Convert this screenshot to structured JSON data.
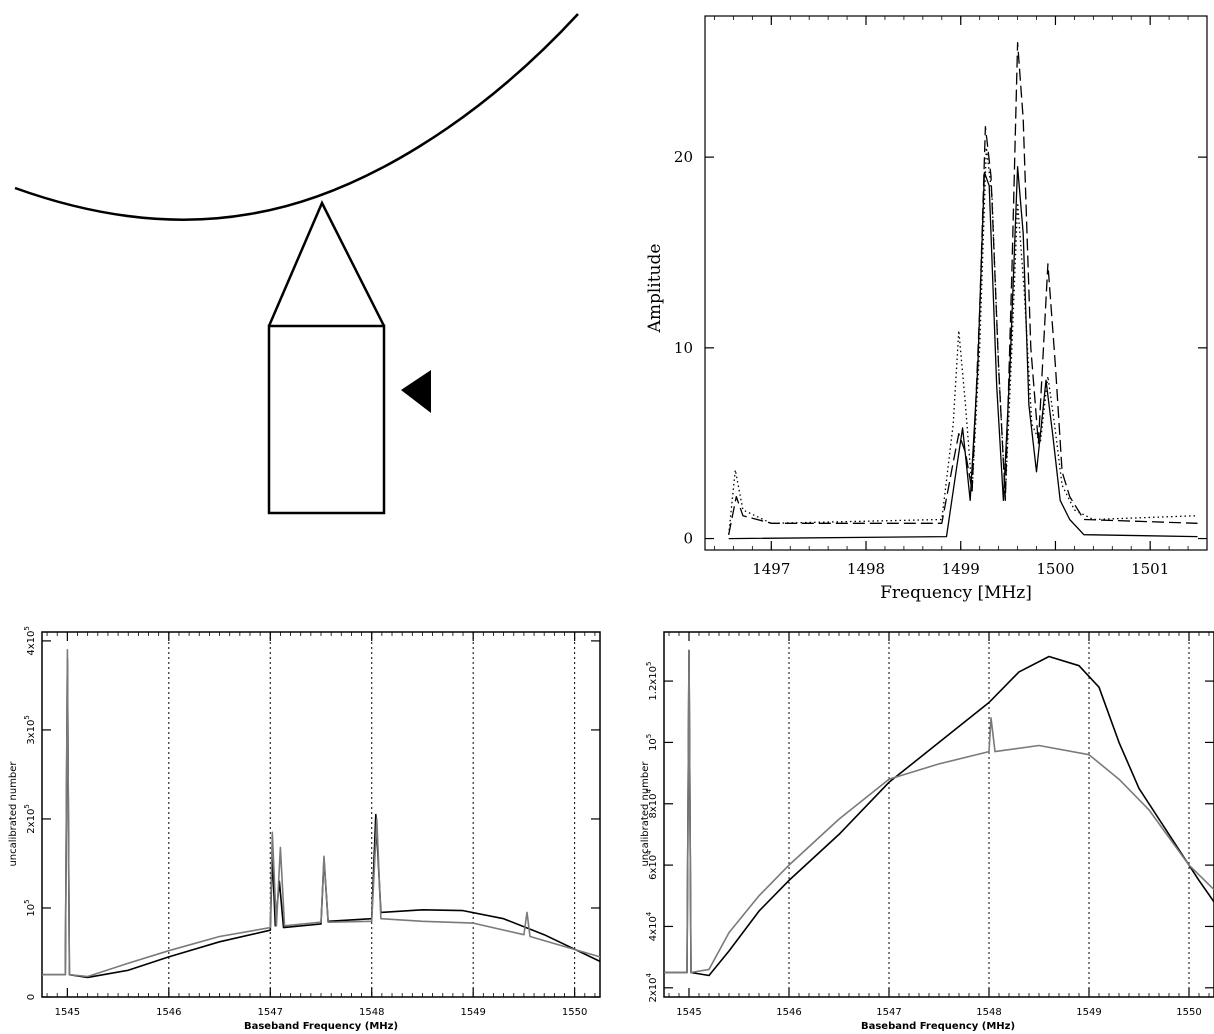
{
  "diagram": {},
  "chart_data": [
    {
      "type": "line",
      "title": "",
      "xlabel": "Frequency [MHz]",
      "ylabel": "Amplitude",
      "xlim": [
        1496.3,
        1501.6
      ],
      "ylim": [
        -0.6,
        27.4
      ],
      "xticks": [
        1497,
        1498,
        1499,
        1500,
        1501
      ],
      "yticks": [
        0,
        10,
        20
      ],
      "grid": false,
      "legend": "none",
      "series": [
        {
          "style": "solid",
          "points": [
            [
              1496.55,
              0.0
            ],
            [
              1498.85,
              0.1
            ],
            [
              1498.95,
              3.5
            ],
            [
              1499.02,
              5.8
            ],
            [
              1499.1,
              2.0
            ],
            [
              1499.18,
              9.0
            ],
            [
              1499.25,
              19.2
            ],
            [
              1499.3,
              18.5
            ],
            [
              1499.38,
              8.0
            ],
            [
              1499.45,
              2.0
            ],
            [
              1499.52,
              9.0
            ],
            [
              1499.6,
              19.5
            ],
            [
              1499.66,
              16.0
            ],
            [
              1499.72,
              7.0
            ],
            [
              1499.8,
              3.5
            ],
            [
              1499.9,
              8.3
            ],
            [
              1499.97,
              5.5
            ],
            [
              1500.05,
              2.0
            ],
            [
              1500.15,
              1.0
            ],
            [
              1500.3,
              0.2
            ],
            [
              1501.5,
              0.1
            ]
          ]
        },
        {
          "style": "dotted",
          "points": [
            [
              1496.55,
              0.2
            ],
            [
              1496.62,
              3.6
            ],
            [
              1496.7,
              1.5
            ],
            [
              1497.0,
              0.8
            ],
            [
              1498.8,
              1.0
            ],
            [
              1498.92,
              6.0
            ],
            [
              1498.98,
              10.9
            ],
            [
              1499.05,
              7.0
            ],
            [
              1499.12,
              2.5
            ],
            [
              1499.2,
              10.0
            ],
            [
              1499.27,
              20.5
            ],
            [
              1499.33,
              18.0
            ],
            [
              1499.4,
              9.0
            ],
            [
              1499.47,
              2.2
            ],
            [
              1499.54,
              10.0
            ],
            [
              1499.6,
              17.6
            ],
            [
              1499.67,
              13.0
            ],
            [
              1499.75,
              6.0
            ],
            [
              1499.84,
              5.0
            ],
            [
              1499.92,
              8.5
            ],
            [
              1499.99,
              6.0
            ],
            [
              1500.07,
              2.8
            ],
            [
              1500.2,
              1.5
            ],
            [
              1500.4,
              1.0
            ],
            [
              1501.5,
              1.2
            ]
          ]
        },
        {
          "style": "dashed",
          "points": [
            [
              1496.55,
              0.2
            ],
            [
              1496.63,
              2.2
            ],
            [
              1496.7,
              1.2
            ],
            [
              1497.0,
              0.8
            ],
            [
              1498.8,
              0.8
            ],
            [
              1498.92,
              4.0
            ],
            [
              1498.98,
              5.5
            ],
            [
              1499.05,
              4.5
            ],
            [
              1499.12,
              2.5
            ],
            [
              1499.2,
              12.0
            ],
            [
              1499.26,
              21.6
            ],
            [
              1499.32,
              19.0
            ],
            [
              1499.4,
              9.0
            ],
            [
              1499.47,
              2.0
            ],
            [
              1499.54,
              14.0
            ],
            [
              1499.6,
              26.0
            ],
            [
              1499.66,
              22.0
            ],
            [
              1499.74,
              10.0
            ],
            [
              1499.82,
              5.0
            ],
            [
              1499.92,
              14.4
            ],
            [
              1500.0,
              9.0
            ],
            [
              1500.07,
              3.5
            ],
            [
              1500.15,
              2.2
            ],
            [
              1500.3,
              1.0
            ],
            [
              1501.5,
              0.8
            ]
          ]
        }
      ]
    },
    {
      "type": "line",
      "title": "",
      "xlabel": "Baseband Frequency (MHz)",
      "ylabel": "uncalibrated number",
      "xlim": [
        1544.75,
        1550.25
      ],
      "ylim": [
        0,
        410000
      ],
      "xticks": [
        1545,
        1546,
        1547,
        1548,
        1549,
        1550
      ],
      "yticks": [
        0,
        100000,
        200000,
        300000,
        400000
      ],
      "ytick_labels": [
        {
          "base": "0",
          "exp": ""
        },
        {
          "base": "10",
          "exp": "5"
        },
        {
          "base": "2x10",
          "exp": "5"
        },
        {
          "base": "3x10",
          "exp": "5"
        },
        {
          "base": "4x10",
          "exp": "5"
        }
      ],
      "vlines": [
        1546,
        1547,
        1548,
        1549,
        1550
      ],
      "series": [
        {
          "color": "#000000",
          "points": [
            [
              1544.75,
              25000
            ],
            [
              1544.98,
              25000
            ],
            [
              1545.0,
              380000
            ],
            [
              1545.02,
              25000
            ],
            [
              1545.2,
              22000
            ],
            [
              1545.6,
              30000
            ],
            [
              1546.0,
              45000
            ],
            [
              1546.5,
              62000
            ],
            [
              1547.0,
              75000
            ],
            [
              1547.02,
              160000
            ],
            [
              1547.05,
              80000
            ],
            [
              1547.09,
              130000
            ],
            [
              1547.13,
              78000
            ],
            [
              1547.5,
              82000
            ],
            [
              1547.53,
              155000
            ],
            [
              1547.57,
              85000
            ],
            [
              1548.0,
              88000
            ],
            [
              1548.04,
              205000
            ],
            [
              1548.09,
              95000
            ],
            [
              1548.5,
              98000
            ],
            [
              1548.9,
              97000
            ],
            [
              1549.3,
              88000
            ],
            [
              1549.7,
              70000
            ],
            [
              1550.25,
              40000
            ]
          ]
        },
        {
          "color": "#7a7a7a",
          "points": [
            [
              1544.75,
              25000
            ],
            [
              1544.98,
              25000
            ],
            [
              1545.0,
              390000
            ],
            [
              1545.02,
              25000
            ],
            [
              1545.2,
              23000
            ],
            [
              1545.6,
              38000
            ],
            [
              1546.0,
              52000
            ],
            [
              1546.5,
              68000
            ],
            [
              1547.0,
              78000
            ],
            [
              1547.02,
              185000
            ],
            [
              1547.06,
              80000
            ],
            [
              1547.1,
              168000
            ],
            [
              1547.14,
              80000
            ],
            [
              1547.5,
              84000
            ],
            [
              1547.53,
              158000
            ],
            [
              1547.57,
              84000
            ],
            [
              1548.0,
              85000
            ],
            [
              1548.05,
              200000
            ],
            [
              1548.09,
              88000
            ],
            [
              1548.5,
              85000
            ],
            [
              1549.0,
              83000
            ],
            [
              1549.5,
              70000
            ],
            [
              1549.53,
              95000
            ],
            [
              1549.56,
              68000
            ],
            [
              1550.25,
              45000
            ]
          ]
        }
      ]
    },
    {
      "type": "line",
      "title": "",
      "xlabel": "Baseband Frequency (MHz)",
      "ylabel": "uncalibrated number",
      "xlim": [
        1544.75,
        1550.25
      ],
      "ylim": [
        17000,
        136000
      ],
      "xticks": [
        1545,
        1546,
        1547,
        1548,
        1549,
        1550
      ],
      "yticks": [
        20000,
        40000,
        60000,
        80000,
        100000,
        120000
      ],
      "ytick_labels": [
        {
          "base": "2x10",
          "exp": "4"
        },
        {
          "base": "4x10",
          "exp": "4"
        },
        {
          "base": "6x10",
          "exp": "4"
        },
        {
          "base": "8x10",
          "exp": "4"
        },
        {
          "base": "10",
          "exp": "5"
        },
        {
          "base": "1.2x10",
          "exp": "5"
        }
      ],
      "vlines": [
        1546,
        1547,
        1548,
        1549,
        1550
      ],
      "series": [
        {
          "color": "#000000",
          "points": [
            [
              1544.75,
              25000
            ],
            [
              1544.98,
              25000
            ],
            [
              1545.0,
              130000
            ],
            [
              1545.02,
              25000
            ],
            [
              1545.2,
              24000
            ],
            [
              1545.4,
              32000
            ],
            [
              1545.7,
              45000
            ],
            [
              1546.0,
              55000
            ],
            [
              1546.5,
              70000
            ],
            [
              1547.0,
              87000
            ],
            [
              1547.5,
              100000
            ],
            [
              1548.0,
              113000
            ],
            [
              1548.3,
              123000
            ],
            [
              1548.6,
              128000
            ],
            [
              1548.9,
              125000
            ],
            [
              1549.1,
              118000
            ],
            [
              1549.3,
              100000
            ],
            [
              1549.5,
              85000
            ],
            [
              1549.8,
              70000
            ],
            [
              1550.1,
              55000
            ],
            [
              1550.25,
              48000
            ]
          ]
        },
        {
          "color": "#7a7a7a",
          "points": [
            [
              1544.75,
              25000
            ],
            [
              1544.98,
              25000
            ],
            [
              1545.0,
              130000
            ],
            [
              1545.02,
              25000
            ],
            [
              1545.2,
              26000
            ],
            [
              1545.4,
              38000
            ],
            [
              1545.7,
              50000
            ],
            [
              1546.0,
              60000
            ],
            [
              1546.5,
              75000
            ],
            [
              1547.0,
              88000
            ],
            [
              1547.5,
              93000
            ],
            [
              1548.0,
              97000
            ],
            [
              1548.02,
              108000
            ],
            [
              1548.06,
              97000
            ],
            [
              1548.5,
              99000
            ],
            [
              1549.0,
              96000
            ],
            [
              1549.3,
              88000
            ],
            [
              1549.6,
              78000
            ],
            [
              1550.0,
              60000
            ],
            [
              1550.25,
              52000
            ]
          ]
        }
      ]
    }
  ]
}
